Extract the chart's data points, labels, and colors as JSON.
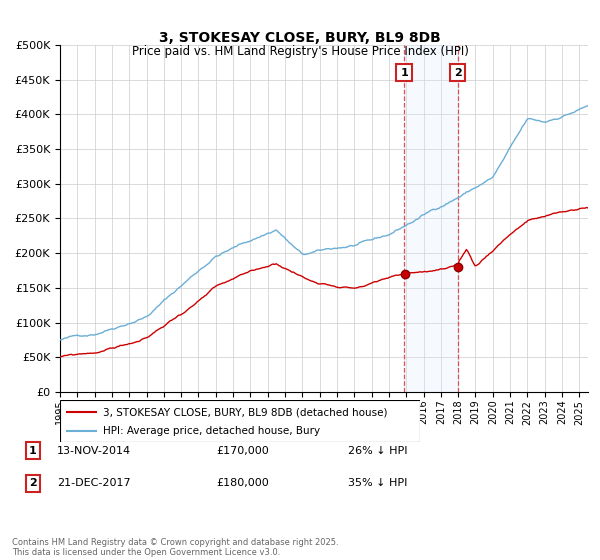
{
  "title": "3, STOKESAY CLOSE, BURY, BL9 8DB",
  "subtitle": "Price paid vs. HM Land Registry's House Price Index (HPI)",
  "ylim": [
    0,
    500000
  ],
  "yticks": [
    0,
    50000,
    100000,
    150000,
    200000,
    250000,
    300000,
    350000,
    400000,
    450000,
    500000
  ],
  "ytick_labels": [
    "£0",
    "£50K",
    "£100K",
    "£150K",
    "£200K",
    "£250K",
    "£300K",
    "£350K",
    "£400K",
    "£450K",
    "£500K"
  ],
  "hpi_color": "#6baed6",
  "price_color": "#cc0000",
  "sale1_date": 2014.88,
  "sale1_price": 170000,
  "sale2_date": 2017.97,
  "sale2_price": 180000,
  "shade_color": "#ddeeff",
  "vline_color": "#e05050",
  "legend_entries": [
    "3, STOKESAY CLOSE, BURY, BL9 8DB (detached house)",
    "HPI: Average price, detached house, Bury"
  ],
  "table_rows": [
    {
      "num": "1",
      "date": "13-NOV-2014",
      "price": "£170,000",
      "hpi": "26% ↓ HPI"
    },
    {
      "num": "2",
      "date": "21-DEC-2017",
      "price": "£180,000",
      "hpi": "35% ↓ HPI"
    }
  ],
  "footer": "Contains HM Land Registry data © Crown copyright and database right 2025.\nThis data is licensed under the Open Government Licence v3.0.",
  "background_color": "#ffffff",
  "grid_color": "#cccccc",
  "xlim_start": 1995,
  "xlim_end": 2025.5
}
